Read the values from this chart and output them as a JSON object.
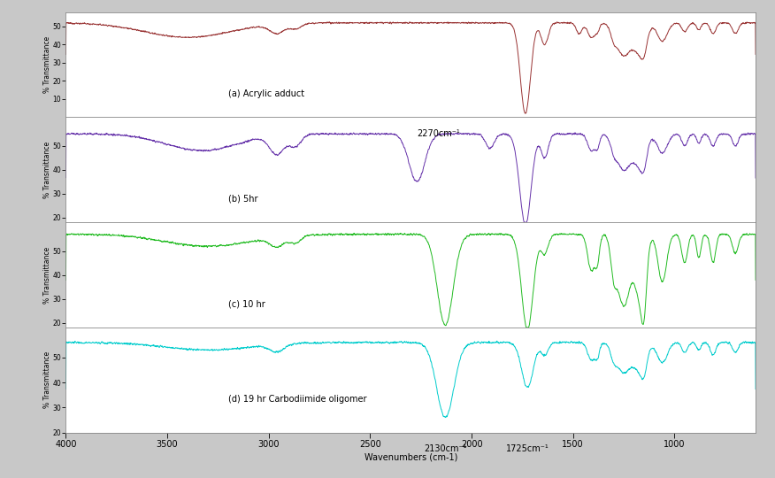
{
  "xlabel": "Wavenumbers (cm-1)",
  "ylabel": "% Transmittance",
  "xlim_left": 4000,
  "xlim_right": 600,
  "background_color": "#c8c8c8",
  "panel_bg": "#ffffff",
  "colors": [
    "#993333",
    "#6633AA",
    "#22BB22",
    "#00CCCC"
  ],
  "labels": [
    "(a) Acrylic adduct",
    "(b) 5hr",
    "(c) 10 hr",
    "(d) 19 hr Carbodiimide oligomer"
  ],
  "annotation_2270": "2270cm⁻¹",
  "annotation_2130": "2130cm⁻¹",
  "annotation_1725": "1725cm⁻¹",
  "xticks": [
    4000,
    3500,
    3000,
    2500,
    2000,
    1500,
    1000
  ],
  "tick_labels": [
    "4000",
    "3500",
    "3000",
    "2500",
    "2000",
    "1500",
    "1000"
  ],
  "yticks_a": [
    10,
    20,
    30,
    40,
    50
  ],
  "yticks_bcd": [
    20,
    30,
    40,
    50
  ],
  "ylim_a": [
    0,
    58
  ],
  "ylim_b": [
    18,
    62
  ],
  "ylim_c": [
    18,
    62
  ],
  "ylim_d": [
    25,
    62
  ]
}
